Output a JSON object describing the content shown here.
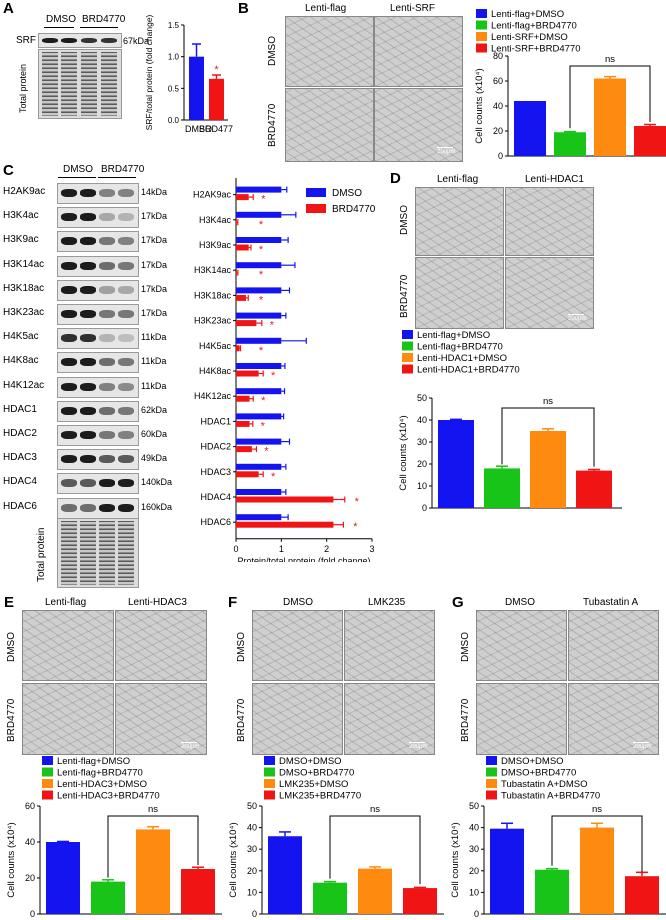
{
  "panels": {
    "A": {
      "label": "A",
      "lanes": [
        "DMSO",
        "BRD4770"
      ],
      "rows": [
        {
          "name": "SRF",
          "kda": "67kDa"
        }
      ],
      "total_protein": "Total protein"
    },
    "B": {
      "label": "B",
      "cols": [
        "Lenti-flag",
        "Lenti-SRF"
      ],
      "rows": [
        "DMSO",
        "BRD4770"
      ],
      "scale": "200μm"
    },
    "C": {
      "label": "C",
      "lanes": [
        "DMSO",
        "BRD4770"
      ],
      "rows": [
        {
          "name": "H2AK9ac",
          "kda": "14kDa"
        },
        {
          "name": "H3K4ac",
          "kda": "17kDa"
        },
        {
          "name": "H3K9ac",
          "kda": "17kDa"
        },
        {
          "name": "H3K14ac",
          "kda": "17kDa"
        },
        {
          "name": "H3K18ac",
          "kda": "17kDa"
        },
        {
          "name": "H3K23ac",
          "kda": "17kDa"
        },
        {
          "name": "H4K5ac",
          "kda": "11kDa"
        },
        {
          "name": "H4K8ac",
          "kda": "11kDa"
        },
        {
          "name": "H4K12ac",
          "kda": "11kDa"
        },
        {
          "name": "HDAC1",
          "kda": "62kDa"
        },
        {
          "name": "HDAC2",
          "kda": "60kDa"
        },
        {
          "name": "HDAC3",
          "kda": "49kDa"
        },
        {
          "name": "HDAC4",
          "kda": "140kDa"
        },
        {
          "name": "HDAC6",
          "kda": "160kDa"
        }
      ],
      "total_protein": "Total protein"
    },
    "D": {
      "label": "D",
      "cols": [
        "Lenti-flag",
        "Lenti-HDAC1"
      ],
      "rows": [
        "DMSO",
        "BRD4770"
      ],
      "scale": "200μm"
    },
    "E": {
      "label": "E",
      "cols": [
        "Lenti-flag",
        "Lenti-HDAC3"
      ],
      "rows": [
        "DMSO",
        "BRD4770"
      ],
      "scale": "200μm"
    },
    "F": {
      "label": "F",
      "cols": [
        "DMSO",
        "LMK235"
      ],
      "rows": [
        "DMSO",
        "BRD4770"
      ],
      "scale": "200μm"
    },
    "G": {
      "label": "G",
      "cols": [
        "DMSO",
        "Tubastatin A"
      ],
      "rows": [
        "DMSO",
        "BRD4770"
      ],
      "scale": "200μm"
    }
  },
  "colors": {
    "blue": "#1414f0",
    "green": "#19c419",
    "orange": "#ff8a10",
    "red": "#f01414",
    "sig": "#e02020"
  },
  "chart_data": [
    {
      "id": "A",
      "type": "bar",
      "categories": [
        "DMSO",
        "BRD4770"
      ],
      "values": [
        1.0,
        0.65
      ],
      "errors": [
        0.2,
        0.06
      ],
      "ylabel": "SRF/total protein (fold change)",
      "ylim": [
        0,
        1.5
      ],
      "yticks": [
        "0.0",
        "0.5",
        "1.0",
        "1.5"
      ],
      "colors": [
        "#1414f0",
        "#f01414"
      ],
      "significance": [
        "",
        "*"
      ]
    },
    {
      "id": "B",
      "type": "bar",
      "categories": [
        "Lenti-flag+DMSO",
        "Lenti-flag+BRD4770",
        "Lenti-SRF+DMSO",
        "Lenti-SRF+BRD4770"
      ],
      "legend": [
        "Lenti-flag+DMSO",
        "Lenti-flag+BRD4770",
        "Lenti-SRF+DMSO",
        "Lenti-SRF+BRD4770"
      ],
      "values": [
        44,
        19,
        62,
        24
      ],
      "errors": [
        0,
        0.5,
        1.5,
        1.2
      ],
      "ylabel": "Cell counts (x10⁴)",
      "ylim": [
        0,
        80
      ],
      "colors": [
        "#1414f0",
        "#19c419",
        "#ff8a10",
        "#f01414"
      ],
      "bracket": {
        "from": 1,
        "to": 3,
        "label": "ns"
      }
    },
    {
      "id": "C",
      "type": "bar",
      "orientation": "horizontal",
      "categories": [
        "H2AK9ac",
        "H3K4ac",
        "H3K9ac",
        "H3K14ac",
        "H3K18ac",
        "H3K23ac",
        "H4K5ac",
        "H4K8ac",
        "H4K12ac",
        "HDAC1",
        "HDAC2",
        "HDAC3",
        "HDAC4",
        "HDAC6"
      ],
      "series": [
        {
          "name": "DMSO",
          "values": [
            1.0,
            1.0,
            1.0,
            1.0,
            1.0,
            1.0,
            1.0,
            1.0,
            1.0,
            1.0,
            1.0,
            1.0,
            1.0,
            1.0
          ],
          "errors": [
            0.12,
            0.32,
            0.15,
            0.3,
            0.18,
            0.1,
            0.55,
            0.08,
            0.07,
            0.05,
            0.18,
            0.1,
            0.1,
            0.15
          ]
        },
        {
          "name": "BRD4770",
          "values": [
            0.28,
            0.02,
            0.28,
            0.02,
            0.22,
            0.45,
            0.08,
            0.5,
            0.3,
            0.3,
            0.35,
            0.5,
            2.15,
            2.15
          ],
          "errors": [
            0.1,
            0.02,
            0.05,
            0.02,
            0.05,
            0.12,
            0.02,
            0.1,
            0.08,
            0.07,
            0.1,
            0.1,
            0.25,
            0.22
          ]
        }
      ],
      "significance": [
        "*",
        "*",
        "*",
        "*",
        "*",
        "*",
        "*",
        "*",
        "*",
        "*",
        "*",
        "*",
        "*",
        "*"
      ],
      "xlabel": "Protein/total protein (fold change)",
      "xlim": [
        0,
        3
      ],
      "xticks": [
        "0",
        "1",
        "2",
        "3"
      ],
      "colors": [
        "#1414f0",
        "#f01414"
      ]
    },
    {
      "id": "D",
      "type": "bar",
      "categories": [
        "Lenti-flag+DMSO",
        "Lenti-flag+BRD4770",
        "Lenti-HDAC1+DMSO",
        "Lenti-HDAC1+BRD4770"
      ],
      "legend": [
        "Lenti-flag+DMSO",
        "Lenti-flag+BRD4770",
        "Lenti-HDAC1+DMSO",
        "Lenti-HDAC1+BRD4770"
      ],
      "values": [
        40,
        18,
        35,
        17
      ],
      "errors": [
        0.3,
        1.0,
        1.0,
        0.5
      ],
      "ylabel": "Cell counts (x10⁴)",
      "ylim": [
        0,
        50
      ],
      "colors": [
        "#1414f0",
        "#19c419",
        "#ff8a10",
        "#f01414"
      ],
      "bracket": {
        "from": 1,
        "to": 3,
        "label": "ns"
      }
    },
    {
      "id": "E",
      "type": "bar",
      "categories": [
        "Lenti-flag+DMSO",
        "Lenti-flag+BRD4770",
        "Lenti-HDAC3+DMSO",
        "Lenti-HDAC3+BRD4770"
      ],
      "legend": [
        "Lenti-flag+DMSO",
        "Lenti-flag+BRD4770",
        "Lenti-HDAC3+DMSO",
        "Lenti-HDAC3+BRD4770"
      ],
      "values": [
        40,
        18,
        47,
        25
      ],
      "errors": [
        0.3,
        1.0,
        1.5,
        1.0
      ],
      "ylabel": "Cell counts (x10⁴)",
      "ylim": [
        0,
        60
      ],
      "yticks": [
        "0",
        "20",
        "40",
        "60"
      ],
      "colors": [
        "#1414f0",
        "#19c419",
        "#ff8a10",
        "#f01414"
      ],
      "bracket": {
        "from": 1,
        "to": 3,
        "label": "ns"
      }
    },
    {
      "id": "F",
      "type": "bar",
      "categories": [
        "DMSO+DMSO",
        "DMSO+BRD4770",
        "LMK235+DMSO",
        "LMK235+BRD4770"
      ],
      "legend": [
        "DMSO+DMSO",
        "DMSO+BRD4770",
        "LMK235+DMSO",
        "LMK235+BRD4770"
      ],
      "values": [
        36,
        14.5,
        21,
        12
      ],
      "errors": [
        2.0,
        0.5,
        0.8,
        0.3
      ],
      "ylabel": "Cell counts (x10⁴)",
      "ylim": [
        0,
        50
      ],
      "yticks": [
        "0",
        "10",
        "20",
        "30",
        "40",
        "50"
      ],
      "colors": [
        "#1414f0",
        "#19c419",
        "#ff8a10",
        "#f01414"
      ],
      "bracket": {
        "from": 1,
        "to": 3,
        "label": "ns"
      }
    },
    {
      "id": "G",
      "type": "bar",
      "categories": [
        "DMSO+DMSO",
        "DMSO+BRD4770",
        "Tubastatin A+DMSO",
        "Tubastatin A+BRD4770"
      ],
      "legend": [
        "DMSO+DMSO",
        "DMSO+BRD4770",
        "Tubastatin A+DMSO",
        "Tubastatin A+BRD4770"
      ],
      "values": [
        39.5,
        20.5,
        40,
        17.5
      ],
      "errors": [
        2.5,
        0.5,
        2.0,
        1.8
      ],
      "ylabel": "Cell counts (x10⁴)",
      "ylim": [
        0,
        50
      ],
      "yticks": [
        "0",
        "10",
        "20",
        "30",
        "40",
        "50"
      ],
      "colors": [
        "#1414f0",
        "#19c419",
        "#ff8a10",
        "#f01414"
      ],
      "bracket": {
        "from": 1,
        "to": 3,
        "label": "ns"
      }
    }
  ]
}
